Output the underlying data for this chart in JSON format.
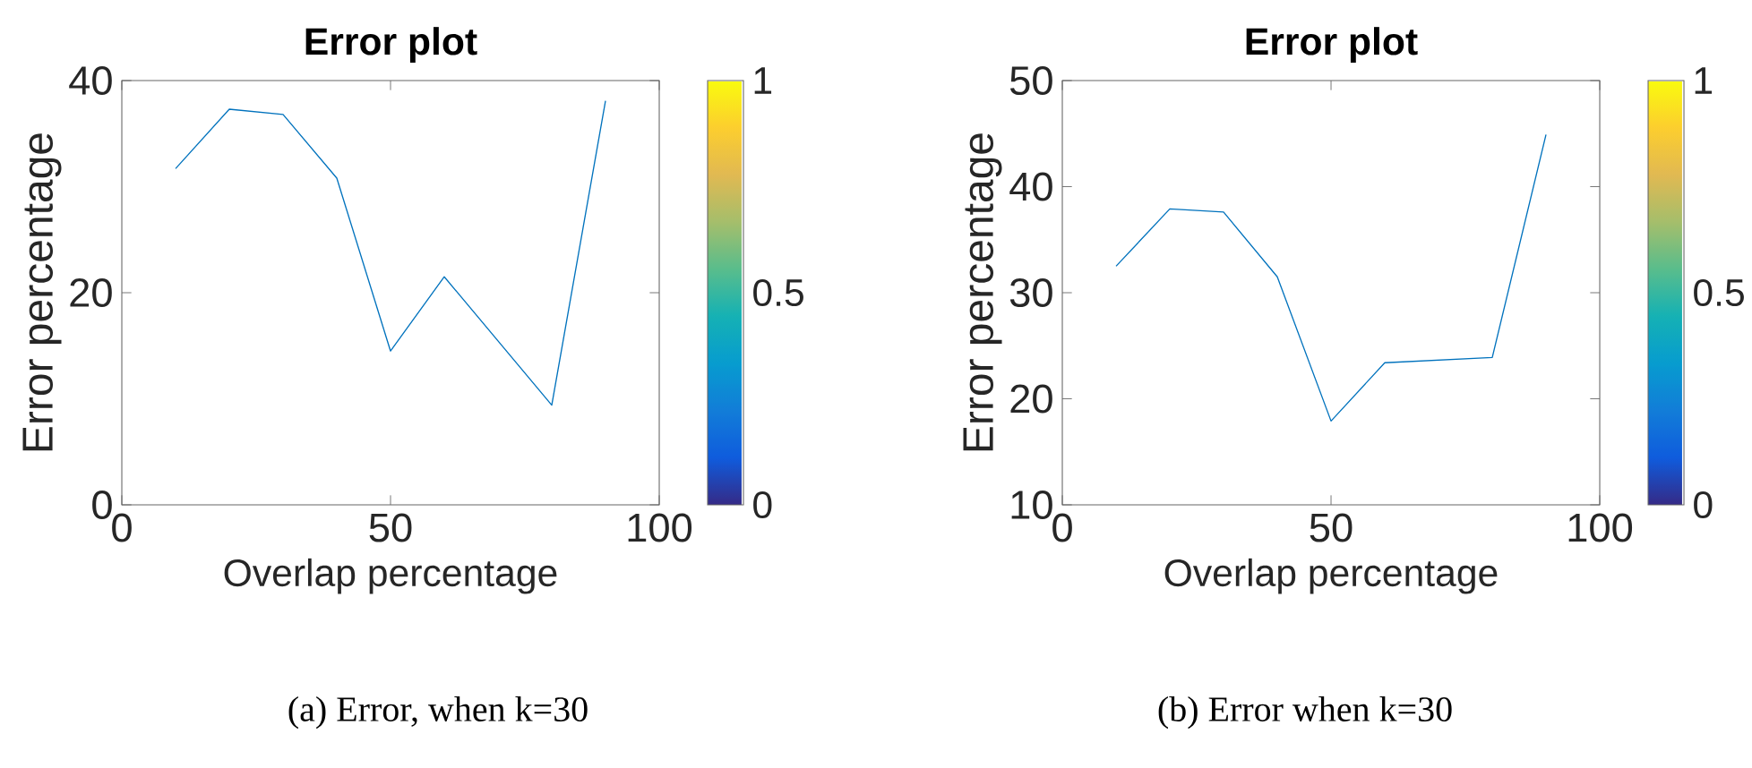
{
  "chart_data": [
    {
      "type": "line",
      "title": "Error plot",
      "xlabel": "Overlap percentage",
      "ylabel": "Error percentage",
      "x": [
        10,
        20,
        30,
        40,
        50,
        60,
        80,
        90
      ],
      "series": [
        {
          "color": "#0072bd",
          "values": [
            31.7,
            37.3,
            36.8,
            30.8,
            14.5,
            21.5,
            9.4,
            38.1
          ]
        }
      ],
      "xlim": [
        0,
        100
      ],
      "xticks": [
        0,
        50,
        100
      ],
      "ylim": [
        0,
        40
      ],
      "yticks": [
        0,
        20,
        40
      ],
      "clim": [
        0,
        1
      ],
      "cticks": [
        0,
        0.5,
        1
      ],
      "annotations": [
        "(a) Error, when k=30"
      ]
    },
    {
      "type": "line",
      "title": "Error plot",
      "xlabel": "Overlap percentage",
      "ylabel": "Error percentage",
      "x": [
        10,
        20,
        30,
        40,
        50,
        60,
        80,
        90
      ],
      "series": [
        {
          "color": "#0072bd",
          "values": [
            32.5,
            37.9,
            37.6,
            31.5,
            17.9,
            23.4,
            23.9,
            44.9
          ]
        }
      ],
      "xlim": [
        0,
        100
      ],
      "xticks": [
        0,
        50,
        100
      ],
      "ylim": [
        10,
        50
      ],
      "yticks": [
        10,
        20,
        30,
        40,
        50
      ],
      "clim": [
        0,
        1
      ],
      "cticks": [
        0,
        0.5,
        1
      ],
      "annotations": [
        "(b) Error when k=30"
      ]
    }
  ]
}
